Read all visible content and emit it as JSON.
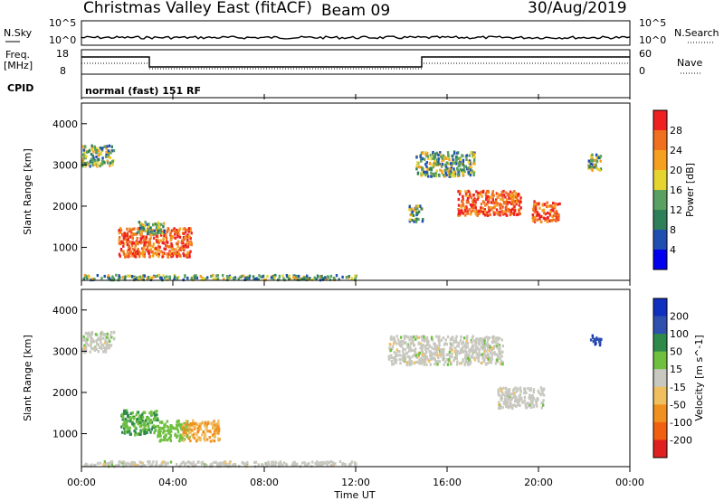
{
  "header": {
    "title": "Christmas Valley East (fitACF)",
    "beam": "Beam 09",
    "date": "30/Aug/2019"
  },
  "noise_panel": {
    "left_label": "N.Sky",
    "left_ticks": [
      "10^5",
      "10^0"
    ],
    "right_label": "N.Search",
    "right_ticks": [
      "10^5",
      "10^0"
    ]
  },
  "freq_panel": {
    "left_label_line1": "Freq.",
    "left_label_line2": "[MHz]",
    "left_ticks": [
      "18",
      "8"
    ],
    "right_label": "Nave",
    "right_ticks": [
      "60",
      "0"
    ]
  },
  "cpid": {
    "label": "CPID",
    "value": "normal (fast) 151 RF"
  },
  "x_axis": {
    "ticks": [
      "00:00",
      "04:00",
      "08:00",
      "12:00",
      "16:00",
      "20:00",
      "00:00"
    ],
    "label": "Time UT"
  },
  "power_panel": {
    "ylabel": "Slant Range [km]",
    "yticks": [
      "1000",
      "2000",
      "3000",
      "4000"
    ],
    "colorbar_label": "Power [dB]",
    "colorbar_ticks": [
      "4",
      "8",
      "12",
      "16",
      "20",
      "24",
      "28"
    ],
    "colors": [
      "#0000ee",
      "#1f4fb0",
      "#2e7f5a",
      "#5aa060",
      "#e6d430",
      "#f5a020",
      "#f07020",
      "#ee2020"
    ]
  },
  "velocity_panel": {
    "ylabel": "Slant Range [km]",
    "yticks": [
      "1000",
      "2000",
      "3000",
      "4000"
    ],
    "colorbar_label": "Velocity [m s^-1]",
    "colorbar_ticks": [
      "200",
      "100",
      "50",
      "15",
      "-15",
      "-50",
      "-100",
      "-200"
    ],
    "colors": [
      "#1030c0",
      "#3050b0",
      "#2e8a4a",
      "#70c040",
      "#c8c8c0",
      "#f0c060",
      "#f09020",
      "#f06010",
      "#e02020"
    ]
  },
  "chart_data": {
    "type": "heatmap",
    "x_range_hours": [
      0,
      24
    ],
    "y_range_km": [
      200,
      4500
    ],
    "power_patches": [
      {
        "t": 0.7,
        "r": 3250,
        "dt": 1.4,
        "dr": 500,
        "level": "mid"
      },
      {
        "t": 3.2,
        "r": 1150,
        "dt": 3.2,
        "dr": 700,
        "level": "high"
      },
      {
        "t": 3.0,
        "r": 1500,
        "dt": 1.2,
        "dr": 300,
        "level": "mid"
      },
      {
        "t": 14.6,
        "r": 1850,
        "dt": 0.6,
        "dr": 400,
        "level": "mid"
      },
      {
        "t": 15.9,
        "r": 3050,
        "dt": 2.6,
        "dr": 600,
        "level": "mid"
      },
      {
        "t": 17.8,
        "r": 2100,
        "dt": 2.8,
        "dr": 600,
        "level": "high"
      },
      {
        "t": 20.3,
        "r": 1900,
        "dt": 1.2,
        "dr": 500,
        "level": "high"
      },
      {
        "t": 22.4,
        "r": 3100,
        "dt": 0.6,
        "dr": 400,
        "level": "mid"
      },
      {
        "t": 0.5,
        "r": 300,
        "dt": 23.0,
        "dr": 120,
        "level": "mid"
      }
    ],
    "velocity_patches": [
      {
        "t": 0.7,
        "r": 3250,
        "dt": 1.4,
        "dr": 500,
        "v": 0
      },
      {
        "t": 2.5,
        "r": 1300,
        "dt": 1.6,
        "dr": 600,
        "v": 60
      },
      {
        "t": 4.0,
        "r": 1100,
        "dt": 1.4,
        "dr": 500,
        "v": 30
      },
      {
        "t": 5.2,
        "r": 1100,
        "dt": 1.6,
        "dr": 500,
        "v": -40
      },
      {
        "t": 15.9,
        "r": 3050,
        "dt": 5.0,
        "dr": 700,
        "v": 0
      },
      {
        "t": 19.2,
        "r": 1900,
        "dt": 2.0,
        "dr": 500,
        "v": 0
      },
      {
        "t": 22.5,
        "r": 3300,
        "dt": 0.5,
        "dr": 250,
        "v": 220
      },
      {
        "t": 0.5,
        "r": 300,
        "dt": 23.0,
        "dr": 120,
        "v": 10
      }
    ]
  }
}
